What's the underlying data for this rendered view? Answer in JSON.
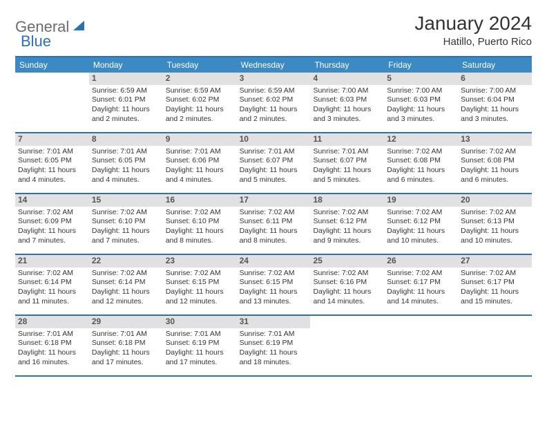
{
  "brand": {
    "general": "General",
    "blue": "Blue"
  },
  "title": "January 2024",
  "location": "Hatillo, Puerto Rico",
  "colors": {
    "header_bg": "#3b8ac4",
    "border": "#2d6fb5",
    "daynum_bg": "#e1e1e1",
    "text": "#333333",
    "logo_gray": "#6b6b6b",
    "logo_blue": "#2d6fb5",
    "white": "#ffffff"
  },
  "weekdays": [
    "Sunday",
    "Monday",
    "Tuesday",
    "Wednesday",
    "Thursday",
    "Friday",
    "Saturday"
  ],
  "weeks": [
    [
      {
        "n": "",
        "sr": "",
        "ss": "",
        "dl": ""
      },
      {
        "n": "1",
        "sr": "Sunrise: 6:59 AM",
        "ss": "Sunset: 6:01 PM",
        "dl": "Daylight: 11 hours and 2 minutes."
      },
      {
        "n": "2",
        "sr": "Sunrise: 6:59 AM",
        "ss": "Sunset: 6:02 PM",
        "dl": "Daylight: 11 hours and 2 minutes."
      },
      {
        "n": "3",
        "sr": "Sunrise: 6:59 AM",
        "ss": "Sunset: 6:02 PM",
        "dl": "Daylight: 11 hours and 2 minutes."
      },
      {
        "n": "4",
        "sr": "Sunrise: 7:00 AM",
        "ss": "Sunset: 6:03 PM",
        "dl": "Daylight: 11 hours and 3 minutes."
      },
      {
        "n": "5",
        "sr": "Sunrise: 7:00 AM",
        "ss": "Sunset: 6:03 PM",
        "dl": "Daylight: 11 hours and 3 minutes."
      },
      {
        "n": "6",
        "sr": "Sunrise: 7:00 AM",
        "ss": "Sunset: 6:04 PM",
        "dl": "Daylight: 11 hours and 3 minutes."
      }
    ],
    [
      {
        "n": "7",
        "sr": "Sunrise: 7:01 AM",
        "ss": "Sunset: 6:05 PM",
        "dl": "Daylight: 11 hours and 4 minutes."
      },
      {
        "n": "8",
        "sr": "Sunrise: 7:01 AM",
        "ss": "Sunset: 6:05 PM",
        "dl": "Daylight: 11 hours and 4 minutes."
      },
      {
        "n": "9",
        "sr": "Sunrise: 7:01 AM",
        "ss": "Sunset: 6:06 PM",
        "dl": "Daylight: 11 hours and 4 minutes."
      },
      {
        "n": "10",
        "sr": "Sunrise: 7:01 AM",
        "ss": "Sunset: 6:07 PM",
        "dl": "Daylight: 11 hours and 5 minutes."
      },
      {
        "n": "11",
        "sr": "Sunrise: 7:01 AM",
        "ss": "Sunset: 6:07 PM",
        "dl": "Daylight: 11 hours and 5 minutes."
      },
      {
        "n": "12",
        "sr": "Sunrise: 7:02 AM",
        "ss": "Sunset: 6:08 PM",
        "dl": "Daylight: 11 hours and 6 minutes."
      },
      {
        "n": "13",
        "sr": "Sunrise: 7:02 AM",
        "ss": "Sunset: 6:08 PM",
        "dl": "Daylight: 11 hours and 6 minutes."
      }
    ],
    [
      {
        "n": "14",
        "sr": "Sunrise: 7:02 AM",
        "ss": "Sunset: 6:09 PM",
        "dl": "Daylight: 11 hours and 7 minutes."
      },
      {
        "n": "15",
        "sr": "Sunrise: 7:02 AM",
        "ss": "Sunset: 6:10 PM",
        "dl": "Daylight: 11 hours and 7 minutes."
      },
      {
        "n": "16",
        "sr": "Sunrise: 7:02 AM",
        "ss": "Sunset: 6:10 PM",
        "dl": "Daylight: 11 hours and 8 minutes."
      },
      {
        "n": "17",
        "sr": "Sunrise: 7:02 AM",
        "ss": "Sunset: 6:11 PM",
        "dl": "Daylight: 11 hours and 8 minutes."
      },
      {
        "n": "18",
        "sr": "Sunrise: 7:02 AM",
        "ss": "Sunset: 6:12 PM",
        "dl": "Daylight: 11 hours and 9 minutes."
      },
      {
        "n": "19",
        "sr": "Sunrise: 7:02 AM",
        "ss": "Sunset: 6:12 PM",
        "dl": "Daylight: 11 hours and 10 minutes."
      },
      {
        "n": "20",
        "sr": "Sunrise: 7:02 AM",
        "ss": "Sunset: 6:13 PM",
        "dl": "Daylight: 11 hours and 10 minutes."
      }
    ],
    [
      {
        "n": "21",
        "sr": "Sunrise: 7:02 AM",
        "ss": "Sunset: 6:14 PM",
        "dl": "Daylight: 11 hours and 11 minutes."
      },
      {
        "n": "22",
        "sr": "Sunrise: 7:02 AM",
        "ss": "Sunset: 6:14 PM",
        "dl": "Daylight: 11 hours and 12 minutes."
      },
      {
        "n": "23",
        "sr": "Sunrise: 7:02 AM",
        "ss": "Sunset: 6:15 PM",
        "dl": "Daylight: 11 hours and 12 minutes."
      },
      {
        "n": "24",
        "sr": "Sunrise: 7:02 AM",
        "ss": "Sunset: 6:15 PM",
        "dl": "Daylight: 11 hours and 13 minutes."
      },
      {
        "n": "25",
        "sr": "Sunrise: 7:02 AM",
        "ss": "Sunset: 6:16 PM",
        "dl": "Daylight: 11 hours and 14 minutes."
      },
      {
        "n": "26",
        "sr": "Sunrise: 7:02 AM",
        "ss": "Sunset: 6:17 PM",
        "dl": "Daylight: 11 hours and 14 minutes."
      },
      {
        "n": "27",
        "sr": "Sunrise: 7:02 AM",
        "ss": "Sunset: 6:17 PM",
        "dl": "Daylight: 11 hours and 15 minutes."
      }
    ],
    [
      {
        "n": "28",
        "sr": "Sunrise: 7:01 AM",
        "ss": "Sunset: 6:18 PM",
        "dl": "Daylight: 11 hours and 16 minutes."
      },
      {
        "n": "29",
        "sr": "Sunrise: 7:01 AM",
        "ss": "Sunset: 6:18 PM",
        "dl": "Daylight: 11 hours and 17 minutes."
      },
      {
        "n": "30",
        "sr": "Sunrise: 7:01 AM",
        "ss": "Sunset: 6:19 PM",
        "dl": "Daylight: 11 hours and 17 minutes."
      },
      {
        "n": "31",
        "sr": "Sunrise: 7:01 AM",
        "ss": "Sunset: 6:19 PM",
        "dl": "Daylight: 11 hours and 18 minutes."
      },
      {
        "n": "",
        "sr": "",
        "ss": "",
        "dl": ""
      },
      {
        "n": "",
        "sr": "",
        "ss": "",
        "dl": ""
      },
      {
        "n": "",
        "sr": "",
        "ss": "",
        "dl": ""
      }
    ]
  ]
}
